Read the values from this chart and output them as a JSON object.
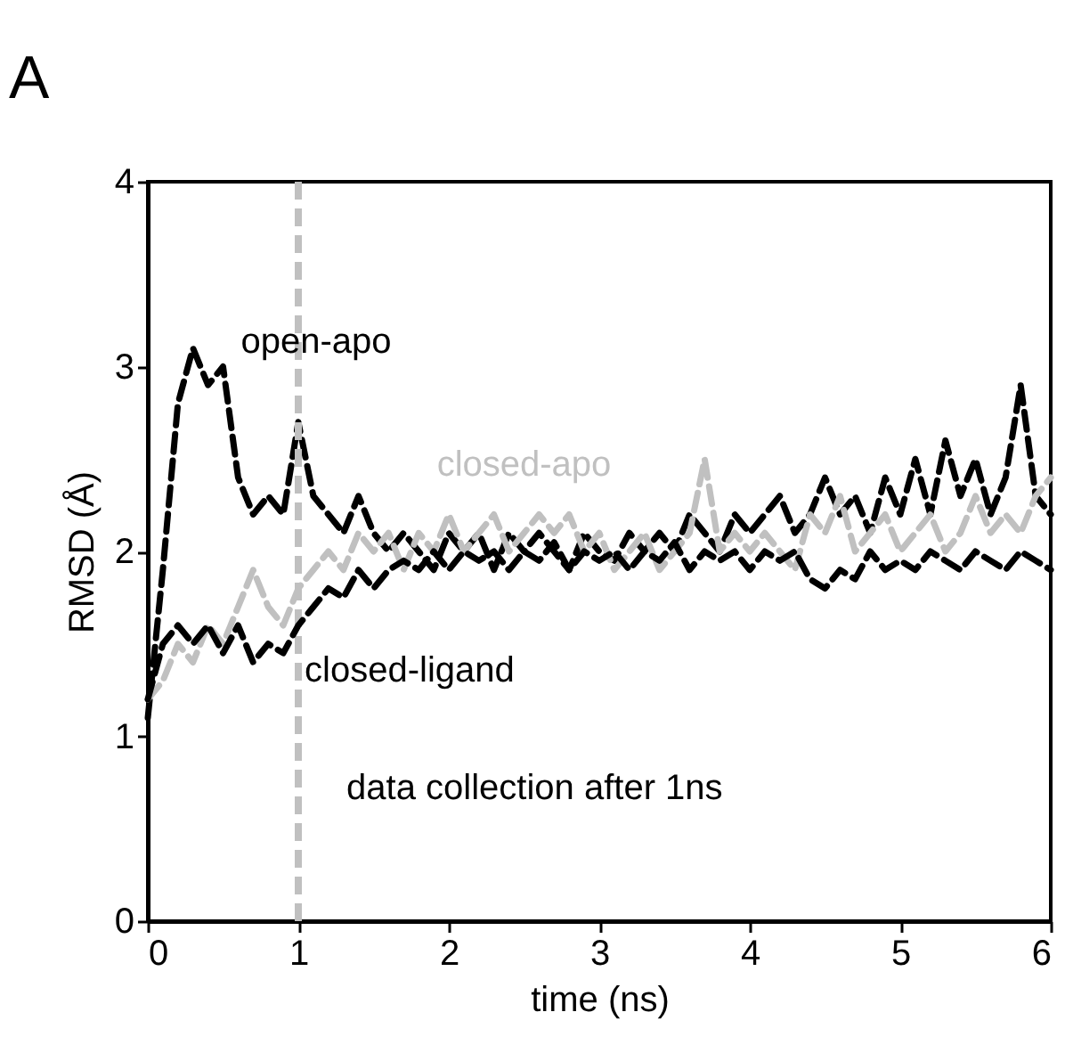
{
  "chart_data": {
    "type": "line",
    "title": "A",
    "xlabel": "time (ns)",
    "ylabel": "RMSD (Å)",
    "x": [
      0,
      0.1,
      0.2,
      0.3,
      0.4,
      0.5,
      0.6,
      0.7,
      0.8,
      0.9,
      1,
      1.1,
      1.2,
      1.3,
      1.4,
      1.5,
      1.6,
      1.7,
      1.8,
      1.9,
      2,
      2.1,
      2.2,
      2.3,
      2.4,
      2.5,
      2.6,
      2.7,
      2.8,
      2.9,
      3,
      3.1,
      3.2,
      3.3,
      3.4,
      3.5,
      3.6,
      3.7,
      3.8,
      3.9,
      4,
      4.1,
      4.2,
      4.3,
      4.4,
      4.5,
      4.6,
      4.7,
      4.8,
      4.9,
      5,
      5.1,
      5.2,
      5.3,
      5.4,
      5.5,
      5.6,
      5.7,
      5.8,
      5.9,
      6
    ],
    "series": [
      {
        "name": "open-apo",
        "color": "#000000",
        "values": [
          1.1,
          1.9,
          2.8,
          3.1,
          2.9,
          3.0,
          2.4,
          2.2,
          2.3,
          2.2,
          2.7,
          2.3,
          2.2,
          2.1,
          2.3,
          2.1,
          2.0,
          2.1,
          2.0,
          1.9,
          2.1,
          2.0,
          2.1,
          1.9,
          2.1,
          2.0,
          2.1,
          2.0,
          1.9,
          2.1,
          2.0,
          1.95,
          2.1,
          2.0,
          2.1,
          2.0,
          2.2,
          2.1,
          2.0,
          2.2,
          2.1,
          2.2,
          2.3,
          2.1,
          2.2,
          2.4,
          2.2,
          2.3,
          2.1,
          2.4,
          2.2,
          2.5,
          2.2,
          2.6,
          2.3,
          2.5,
          2.2,
          2.4,
          2.9,
          2.3,
          2.2
        ]
      },
      {
        "name": "closed-apo",
        "color": "#c0c0c0",
        "values": [
          1.2,
          1.3,
          1.5,
          1.4,
          1.6,
          1.5,
          1.7,
          1.9,
          1.7,
          1.6,
          1.8,
          1.9,
          2.0,
          1.9,
          2.1,
          2.0,
          2.1,
          1.9,
          2.1,
          2.0,
          2.2,
          2.0,
          2.1,
          2.2,
          2.0,
          2.1,
          2.2,
          2.1,
          2.2,
          2.0,
          2.1,
          1.9,
          2.0,
          2.1,
          1.9,
          2.0,
          2.1,
          2.5,
          2.0,
          2.1,
          2.0,
          2.1,
          2.0,
          1.9,
          2.2,
          2.1,
          2.3,
          2.0,
          2.1,
          2.2,
          2.0,
          2.1,
          2.2,
          2.0,
          2.1,
          2.3,
          2.1,
          2.2,
          2.1,
          2.3,
          2.4
        ]
      },
      {
        "name": "closed-ligand",
        "color": "#000000",
        "values": [
          1.2,
          1.5,
          1.6,
          1.5,
          1.6,
          1.45,
          1.6,
          1.4,
          1.5,
          1.45,
          1.6,
          1.7,
          1.8,
          1.75,
          1.9,
          1.8,
          1.9,
          1.95,
          1.9,
          2.0,
          1.9,
          2.0,
          1.95,
          2.0,
          1.9,
          2.0,
          1.95,
          2.05,
          1.9,
          2.0,
          1.95,
          2.0,
          1.9,
          2.0,
          1.95,
          2.05,
          1.9,
          2.0,
          1.95,
          2.0,
          1.9,
          2.0,
          1.95,
          2.0,
          1.85,
          1.8,
          1.9,
          1.85,
          2.0,
          1.9,
          1.95,
          1.9,
          2.0,
          1.95,
          1.9,
          2.0,
          1.95,
          1.9,
          2.0,
          1.95,
          1.9
        ]
      }
    ],
    "xlim": [
      0,
      6
    ],
    "xticks": [
      0,
      1,
      2,
      3,
      4,
      5,
      6
    ],
    "ylim": [
      0,
      4
    ],
    "yticks": [
      0,
      1,
      2,
      3,
      4
    ],
    "grid": false,
    "marker": "none",
    "line_style": "dashed",
    "ref_lines": [
      {
        "axis": "x",
        "value": 1,
        "color": "#c0c0c0",
        "line_style": "dashed"
      }
    ],
    "annotations": [
      "data collection after 1ns"
    ]
  }
}
